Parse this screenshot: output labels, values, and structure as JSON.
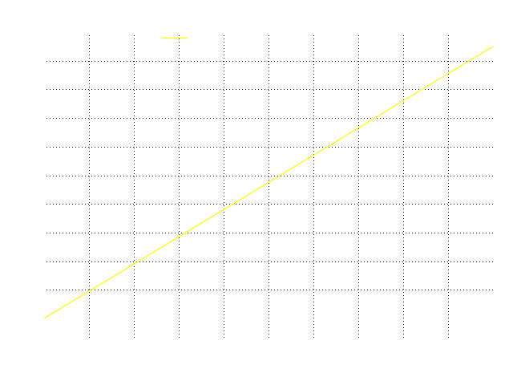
{
  "chart_data": {
    "type": "line",
    "title": "",
    "xlabel": "",
    "ylabel": "",
    "xlim": [
      0,
      10
    ],
    "ylim": [
      0,
      10
    ],
    "x_gridlines": [
      1,
      2,
      3,
      4,
      5,
      6,
      7,
      8,
      9
    ],
    "y_gridlines": [
      1,
      2,
      3,
      4,
      5,
      6,
      7,
      8,
      9
    ],
    "grid": true,
    "grid_style": "dotted",
    "series": [
      {
        "name": "",
        "color": "#ffff00",
        "x": [
          0,
          10
        ],
        "y": [
          0,
          9.5
        ]
      }
    ],
    "legend": {
      "position": "top-center",
      "entries": [
        {
          "label": "",
          "color": "#ffff00"
        }
      ]
    }
  }
}
